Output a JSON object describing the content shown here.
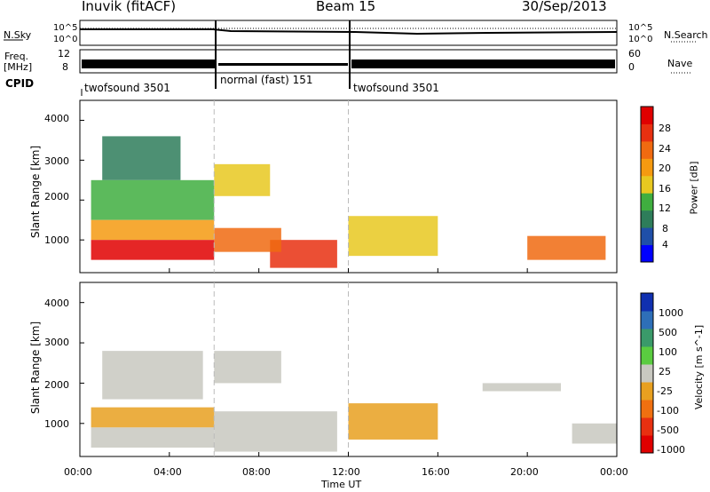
{
  "header": {
    "station": "Inuvik (fitACF)",
    "beam": "Beam 15",
    "date": "30/Sep/2013"
  },
  "status_panel": {
    "nsky_label": "N.Sky",
    "nsearch_label": "N.Search",
    "noise_ticks": [
      "10^5",
      "10^0"
    ],
    "freq_label": "Freq.",
    "freq_unit": "[MHz]",
    "freq_ticks": [
      "12",
      "8"
    ],
    "nave_label": "Nave",
    "nave_ticks": [
      "60",
      "0"
    ],
    "cpid_label": "CPID",
    "cpid_segments": [
      {
        "label": "twofsound 3501",
        "start_hour": 0,
        "end_hour": 6
      },
      {
        "label": "normal (fast) 151",
        "start_hour": 6,
        "end_hour": 12
      },
      {
        "label": "twofsound 3501",
        "start_hour": 12,
        "end_hour": 24
      }
    ]
  },
  "axes": {
    "ylabel": "Slant Range [km]",
    "y_ticks": [
      "1000",
      "2000",
      "3000",
      "4000"
    ],
    "xlabel": "Time UT",
    "x_ticks": [
      "00:00",
      "04:00",
      "08:00",
      "12:00",
      "16:00",
      "20:00",
      "00:00"
    ]
  },
  "power_colorbar": {
    "label": "Power [dB]",
    "ticks": [
      "4",
      "8",
      "12",
      "16",
      "20",
      "24",
      "28"
    ],
    "colors": [
      "#0000ff",
      "#1f4fa8",
      "#2e7d5a",
      "#3fae3f",
      "#e8c820",
      "#f59a10",
      "#f06a10",
      "#e83010",
      "#e00000"
    ]
  },
  "velocity_colorbar": {
    "label": "Velocity [m s^-1]",
    "ticks": [
      "1000",
      "500",
      "100",
      "25",
      "-25",
      "-100",
      "-500",
      "-1000"
    ],
    "colors": [
      "#1030b0",
      "#2e6fb8",
      "#3a9a6a",
      "#5acc40",
      "#c8c8c0",
      "#e8a020",
      "#f07010",
      "#e83010",
      "#e00000"
    ]
  },
  "chart_data": [
    {
      "type": "heatmap",
      "quantity": "Power",
      "unit": "dB",
      "x_range_hours": [
        0,
        24
      ],
      "y_range_km": [
        180,
        4500
      ],
      "color_range": [
        0,
        30
      ],
      "grid": false,
      "patches": [
        {
          "t0": 0.5,
          "t1": 6.0,
          "r0": 500,
          "r1": 1000,
          "value": 28
        },
        {
          "t0": 0.5,
          "t1": 6.0,
          "r0": 1000,
          "r1": 1500,
          "value": 18
        },
        {
          "t0": 0.5,
          "t1": 6.0,
          "r0": 1500,
          "r1": 2500,
          "value": 12
        },
        {
          "t0": 1.0,
          "t1": 4.5,
          "r0": 2500,
          "r1": 3600,
          "value": 9
        },
        {
          "t0": 6.0,
          "t1": 9.0,
          "r0": 700,
          "r1": 1300,
          "value": 22
        },
        {
          "t0": 6.0,
          "t1": 8.5,
          "r0": 2100,
          "r1": 2900,
          "value": 14
        },
        {
          "t0": 8.5,
          "t1": 11.5,
          "r0": 300,
          "r1": 1000,
          "value": 25
        },
        {
          "t0": 12.0,
          "t1": 16.0,
          "r0": 600,
          "r1": 1600,
          "value": 16
        },
        {
          "t0": 20.0,
          "t1": 23.5,
          "r0": 500,
          "r1": 1100,
          "value": 20
        }
      ]
    },
    {
      "type": "heatmap",
      "quantity": "Velocity",
      "unit": "m s^-1",
      "x_range_hours": [
        0,
        24
      ],
      "y_range_km": [
        180,
        4500
      ],
      "color_range": [
        -1000,
        1000
      ],
      "grid": false,
      "patches": [
        {
          "t0": 0.5,
          "t1": 6.0,
          "r0": 400,
          "r1": 900,
          "value": 50
        },
        {
          "t0": 0.5,
          "t1": 6.0,
          "r0": 900,
          "r1": 1400,
          "value": -150
        },
        {
          "t0": 1.0,
          "t1": 5.5,
          "r0": 1600,
          "r1": 2800,
          "value": 0
        },
        {
          "t0": 6.0,
          "t1": 9.0,
          "r0": 2000,
          "r1": 2800,
          "value": 0
        },
        {
          "t0": 6.0,
          "t1": 11.5,
          "r0": 300,
          "r1": 1300,
          "value": 80
        },
        {
          "t0": 12.0,
          "t1": 16.0,
          "r0": 600,
          "r1": 1500,
          "value": -150
        },
        {
          "t0": 18.0,
          "t1": 21.5,
          "r0": 1800,
          "r1": 2000,
          "value": 0
        },
        {
          "t0": 22.0,
          "t1": 24.0,
          "r0": 500,
          "r1": 1000,
          "value": 80
        }
      ]
    }
  ]
}
